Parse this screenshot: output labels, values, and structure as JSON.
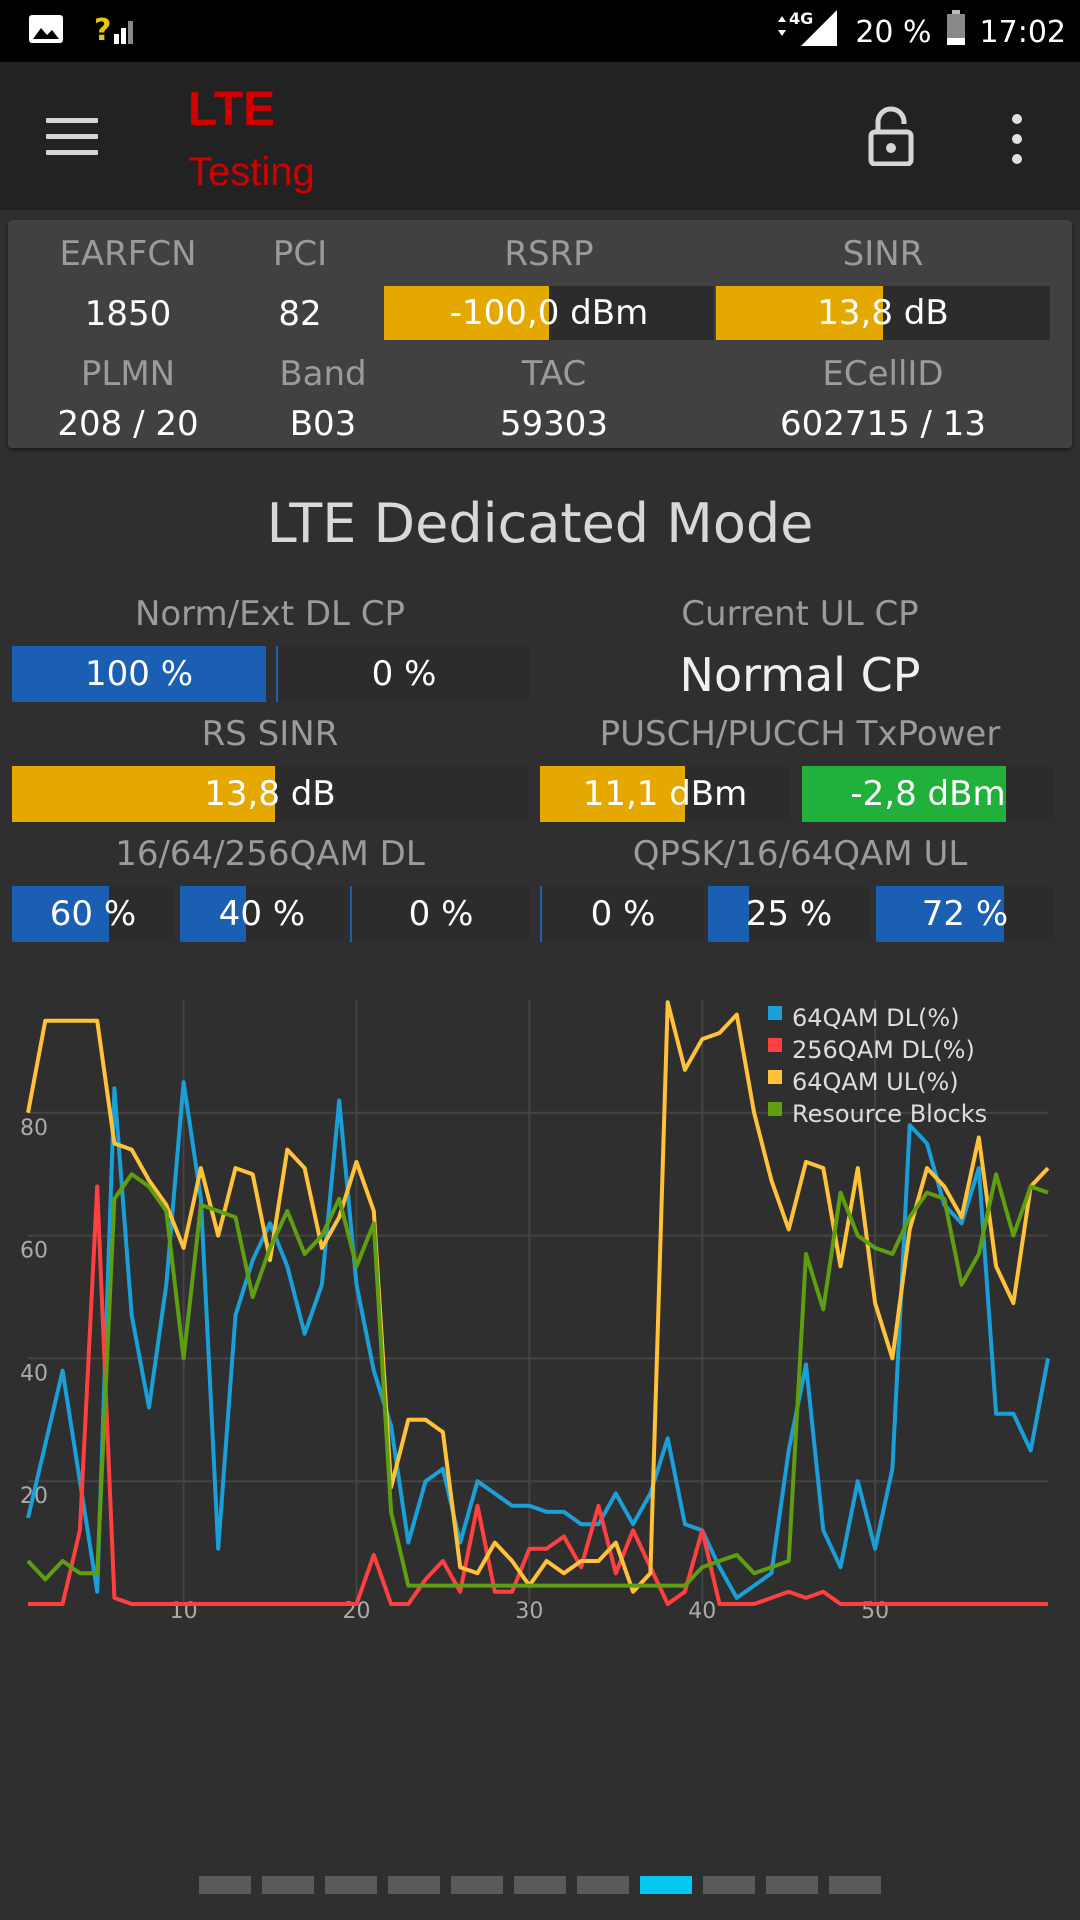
{
  "status": {
    "network_tech": "4G",
    "battery": "20 %",
    "time": "17:02"
  },
  "app": {
    "title": "LTE",
    "subtitle": "Testing"
  },
  "cell": {
    "earfcn_label": "EARFCN",
    "earfcn": "1850",
    "pci_label": "PCI",
    "pci": "82",
    "rsrp_label": "RSRP",
    "rsrp": "-100,0 dBm",
    "rsrp_fill": 0.5,
    "sinr_label": "SINR",
    "sinr": "13,8 dB",
    "sinr_fill": 0.5,
    "plmn_label": "PLMN",
    "plmn": "208 / 20",
    "band_label": "Band",
    "band": "B03",
    "tac_label": "TAC",
    "tac": "59303",
    "ecellid_label": "ECellID",
    "ecellid": "602715 / 13"
  },
  "dedicated": {
    "title": "LTE Dedicated Mode",
    "cp_dl_label": "Norm/Ext DL CP",
    "cp_dl_norm": "100 %",
    "cp_dl_norm_fill": 1.0,
    "cp_dl_ext": "0 %",
    "cp_dl_ext_fill": 0.0,
    "cp_ul_label": "Current UL CP",
    "cp_ul_value": "Normal CP",
    "rs_sinr_label": "RS SINR",
    "rs_sinr": "13,8 dB",
    "rs_sinr_fill": 0.51,
    "txpower_label": "PUSCH/PUCCH TxPower",
    "pusch": "11,1 dBm",
    "pusch_fill": 0.58,
    "pucch": "-2,8 dBm",
    "pucch_fill": 0.81,
    "qam_dl_label": "16/64/256QAM DL",
    "dl16": "60 %",
    "dl16_fill": 0.6,
    "dl64": "40 %",
    "dl64_fill": 0.4,
    "dl256": "0 %",
    "dl256_fill": 0.0,
    "qam_ul_label": "QPSK/16/64QAM UL",
    "ulqpsk": "0 %",
    "ulqpsk_fill": 0.0,
    "ul16": "25 %",
    "ul16_fill": 0.25,
    "ul64": "72 %",
    "ul64_fill": 0.72
  },
  "colors": {
    "blue_bar": "#1a5fb4",
    "yellow_bar": "#e5a800",
    "green_bar": "#22b03c",
    "series_64dl": "#1a9fd8",
    "series_256dl": "#ff4040",
    "series_64ul": "#ffc23a",
    "series_rb": "#5e9e10",
    "pager_active": "#00c8f0"
  },
  "chart_data": {
    "type": "line",
    "x": [
      1,
      2,
      3,
      4,
      5,
      6,
      7,
      8,
      9,
      10,
      11,
      12,
      13,
      14,
      15,
      16,
      17,
      18,
      19,
      20,
      21,
      22,
      23,
      24,
      25,
      26,
      27,
      28,
      29,
      30,
      31,
      32,
      33,
      34,
      35,
      36,
      37,
      38,
      39,
      40,
      41,
      42,
      43,
      44,
      45,
      46,
      47,
      48,
      49,
      50,
      51,
      52,
      53,
      54,
      55,
      56,
      57,
      58,
      59,
      60
    ],
    "xticks": [
      "10",
      "20",
      "30",
      "40",
      "50"
    ],
    "yticks": [
      "20",
      "40",
      "60",
      "80"
    ],
    "ylim": [
      0,
      100
    ],
    "grid": true,
    "legend_position": "top-right",
    "series": [
      {
        "name": "64QAM DL(%)",
        "values": [
          14,
          26,
          38,
          20,
          2,
          84,
          47,
          32,
          52,
          85,
          66,
          9,
          47,
          56,
          62,
          55,
          44,
          52,
          82,
          52,
          38,
          29,
          10,
          20,
          22,
          10,
          20,
          18,
          16,
          16,
          15,
          15,
          13,
          13,
          18,
          13,
          18,
          27,
          13,
          12,
          6,
          1,
          3,
          5,
          25,
          39,
          12,
          6,
          20,
          9,
          22,
          78,
          75,
          65,
          62,
          71,
          31,
          31,
          25,
          40
        ]
      },
      {
        "name": "256QAM DL(%)",
        "values": [
          0,
          0,
          0,
          12,
          68,
          1,
          0,
          0,
          0,
          0,
          0,
          0,
          0,
          0,
          0,
          0,
          0,
          0,
          0,
          0,
          8,
          0,
          0,
          4,
          7,
          2,
          16,
          2,
          2,
          9,
          9,
          11,
          6,
          16,
          5,
          12,
          6,
          0,
          2,
          12,
          0,
          0,
          0,
          1,
          2,
          1,
          2,
          0,
          0,
          0,
          0,
          0,
          0,
          0,
          0,
          0,
          0,
          0,
          0,
          0
        ]
      },
      {
        "name": "64QAM UL(%)",
        "values": [
          80,
          95,
          95,
          95,
          95,
          75,
          74,
          69,
          65,
          58,
          71,
          60,
          71,
          70,
          56,
          74,
          71,
          58,
          63,
          72,
          64,
          19,
          30,
          30,
          28,
          6,
          5,
          10,
          7,
          3,
          7,
          5,
          7,
          7,
          10,
          2,
          5,
          98,
          87,
          92,
          93,
          96,
          80,
          69,
          61,
          72,
          71,
          55,
          71,
          49,
          40,
          61,
          71,
          68,
          63,
          76,
          55,
          49,
          68,
          71
        ]
      },
      {
        "name": "Resource Blocks",
        "values": [
          7,
          4,
          7,
          5,
          5,
          66,
          70,
          68,
          64,
          40,
          65,
          64,
          63,
          50,
          58,
          64,
          57,
          60,
          66,
          55,
          62,
          15,
          3,
          3,
          3,
          3,
          3,
          3,
          3,
          3,
          3,
          3,
          3,
          3,
          3,
          3,
          3,
          3,
          3,
          6,
          7,
          8,
          5,
          6,
          7,
          57,
          48,
          67,
          60,
          58,
          57,
          63,
          67,
          66,
          52,
          57,
          70,
          60,
          68,
          67
        ]
      }
    ]
  },
  "pager": {
    "count": 11,
    "active": 7
  }
}
